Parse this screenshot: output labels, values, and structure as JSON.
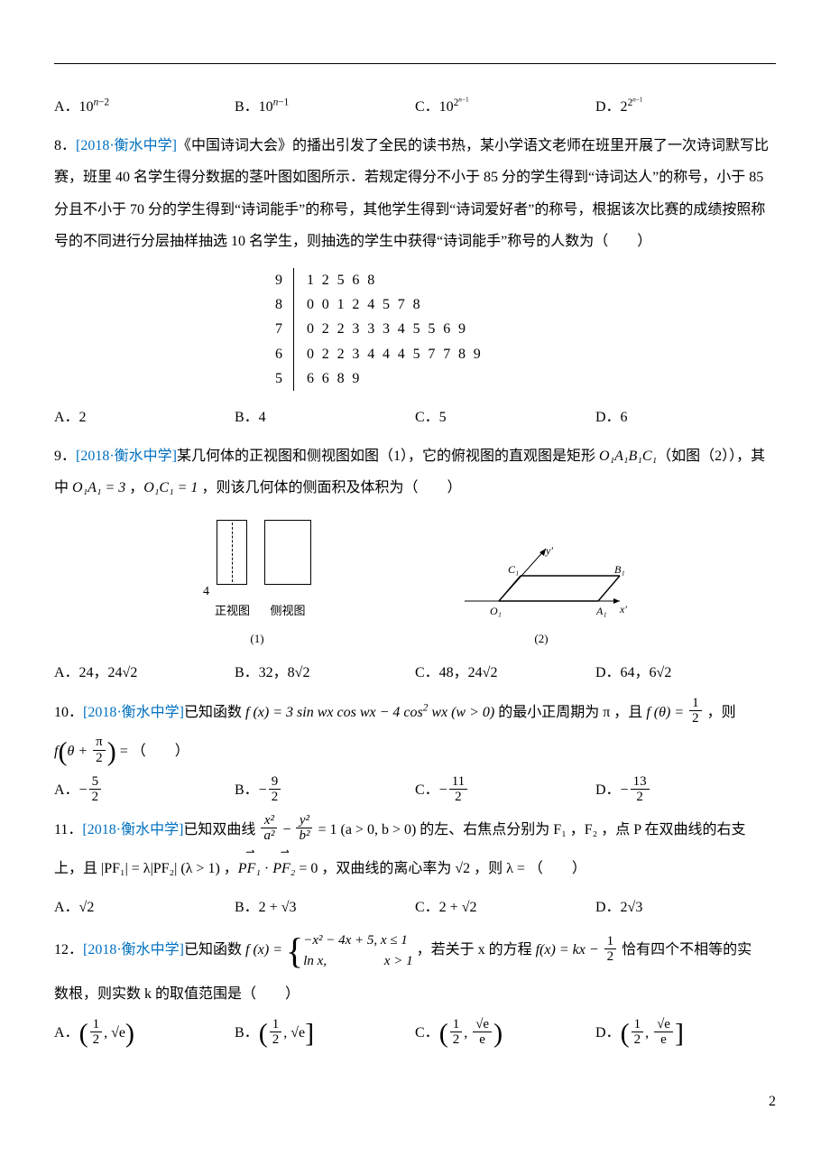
{
  "colors": {
    "source_tag": "#0070c0",
    "text": "#000000",
    "bg": "#ffffff"
  },
  "q7_opts": {
    "a": "A．10<sup><span class='ital'>n</span>−2</sup>",
    "b": "B．10<sup><span class='ital'>n</span>−1</sup>",
    "c": "C．10<sup>2<sup class='sup2'><span class='ital'>n</span>−1</sup></sup>",
    "d": "D．2<sup>2<sup class='sup2'><span class='ital'>n</span>−1</sup></sup>"
  },
  "q8": {
    "num": "8．",
    "tag": "[2018·衡水中学]",
    "body": "《中国诗词大会》的播出引发了全民的读书热，某小学语文老师在班里开展了一次诗词默写比赛，班里 40 名学生得分数据的茎叶图如图所示．若规定得分不小于 85 分的学生得到“诗词达人”的称号，小于 85 分且不小于 70 分的学生得到“诗词能手”的称号，其他学生得到“诗词爱好者”的称号，根据该次比赛的成绩按照称号的不同进行分层抽样抽选 10 名学生，则抽选的学生中获得“诗词能手”称号的人数为（　　）",
    "stemleaf": [
      {
        "stem": "9",
        "leaf": "12568"
      },
      {
        "stem": "8",
        "leaf": "00124578"
      },
      {
        "stem": "7",
        "leaf": "02233345569"
      },
      {
        "stem": "6",
        "leaf": "022344457789"
      },
      {
        "stem": "5",
        "leaf": "6689"
      }
    ],
    "opts": {
      "a": "A．2",
      "b": "B．4",
      "c": "C．5",
      "d": "D．6"
    }
  },
  "q9": {
    "num": "9．",
    "tag": "[2018·衡水中学]",
    "body1": "某几何体的正视图和侧视图如图（1），它的俯视图的直观图是矩形 ",
    "oabc": "O₁A₁B₁C₁",
    "body2": "（如图（2）），其中 ",
    "eq1": "O₁A₁ = 3",
    "mid": " ，",
    "eq2": "O₁C₁ = 1",
    "body3": " ，则该几何体的侧面积及体积为（　　）",
    "left_y": "4",
    "left_cap1": "正视图",
    "left_cap2": "侧视图",
    "cap1": "(1)",
    "cap2": "(2)",
    "d_labels": {
      "C1": "C₁",
      "B1": "B₁",
      "O1": "O₁",
      "A1": "A₁",
      "x": "x′",
      "y": "y′"
    },
    "opts": {
      "a": "A．24，24√2",
      "b": "B．32，8√2",
      "c": "C．48，24√2",
      "d": "D．64，6√2"
    }
  },
  "q10": {
    "num": "10．",
    "tag": "[2018·衡水中学]",
    "pre": "已知函数 ",
    "fx": "f(x) = 3 sin wx cos wx − 4 cos² wx (w > 0)",
    "mid": " 的最小正周期为 π ，且 ",
    "ftheta_n": "1",
    "ftheta_d": "2",
    "then": " ，则",
    "line2_lhs": "f",
    "arg": "θ + π/2",
    "eqp": " = （　　）",
    "opts": {
      "a_n": "5",
      "a_d": "2",
      "b_n": "9",
      "b_d": "2",
      "c_n": "11",
      "c_d": "2",
      "d_n": "13",
      "d_d": "2"
    }
  },
  "q11": {
    "num": "11．",
    "tag": "[2018·衡水中学]",
    "pre": "已知双曲线 ",
    "hyp_l": "x²",
    "hyp_la": "a²",
    "hyp_r": "y²",
    "hyp_rb": "b²",
    "cond": " = 1 (a > 0, b > 0) 的左、右焦点分别为 F₁ ，F₂ ，点 P 在双曲线的右支",
    "line2a": "上，且 |PF₁| = λ|PF₂| (λ > 1) ，",
    "vec1": "PF₁",
    "vec2": "PF₂",
    "line2b": " = 0 ，双曲线的离心率为 √2 ，则 λ = （　　）",
    "opts": {
      "a": "A．√2",
      "b": "B．2 + √3",
      "c": "C．2 + √2",
      "d": "D．2√3"
    }
  },
  "q12": {
    "num": "12．",
    "tag": "[2018·衡水中学]",
    "pre": "已知函数 ",
    "piece1": "−x² − 4x + 5,  x ≤ 1",
    "piece2": "ln x,　　　　  x > 1",
    "mid": " ，若关于 x 的方程 ",
    "eq_rhs": "f(x) = kx − ",
    "half_n": "1",
    "half_d": "2",
    "tail": " 恰有四个不相等的实",
    "line2": "数根，则实数 k 的取值范围是（　　）",
    "opts": {
      "a_l": "1",
      "a_ld": "2",
      "a_r": "√e",
      "a_lb": "(",
      "a_rb": ")",
      "b_l": "1",
      "b_ld": "2",
      "b_r": "√e",
      "b_lb": "(",
      "b_rb": "]",
      "c_l": "1",
      "c_ld": "2",
      "c_rn": "√e",
      "c_rd": "e",
      "c_lb": "(",
      "c_rb": ")",
      "d_l": "1",
      "d_ld": "2",
      "d_rn": "√e",
      "d_rd": "e",
      "d_lb": "(",
      "d_rb": "]"
    }
  },
  "pagefoot": "2"
}
